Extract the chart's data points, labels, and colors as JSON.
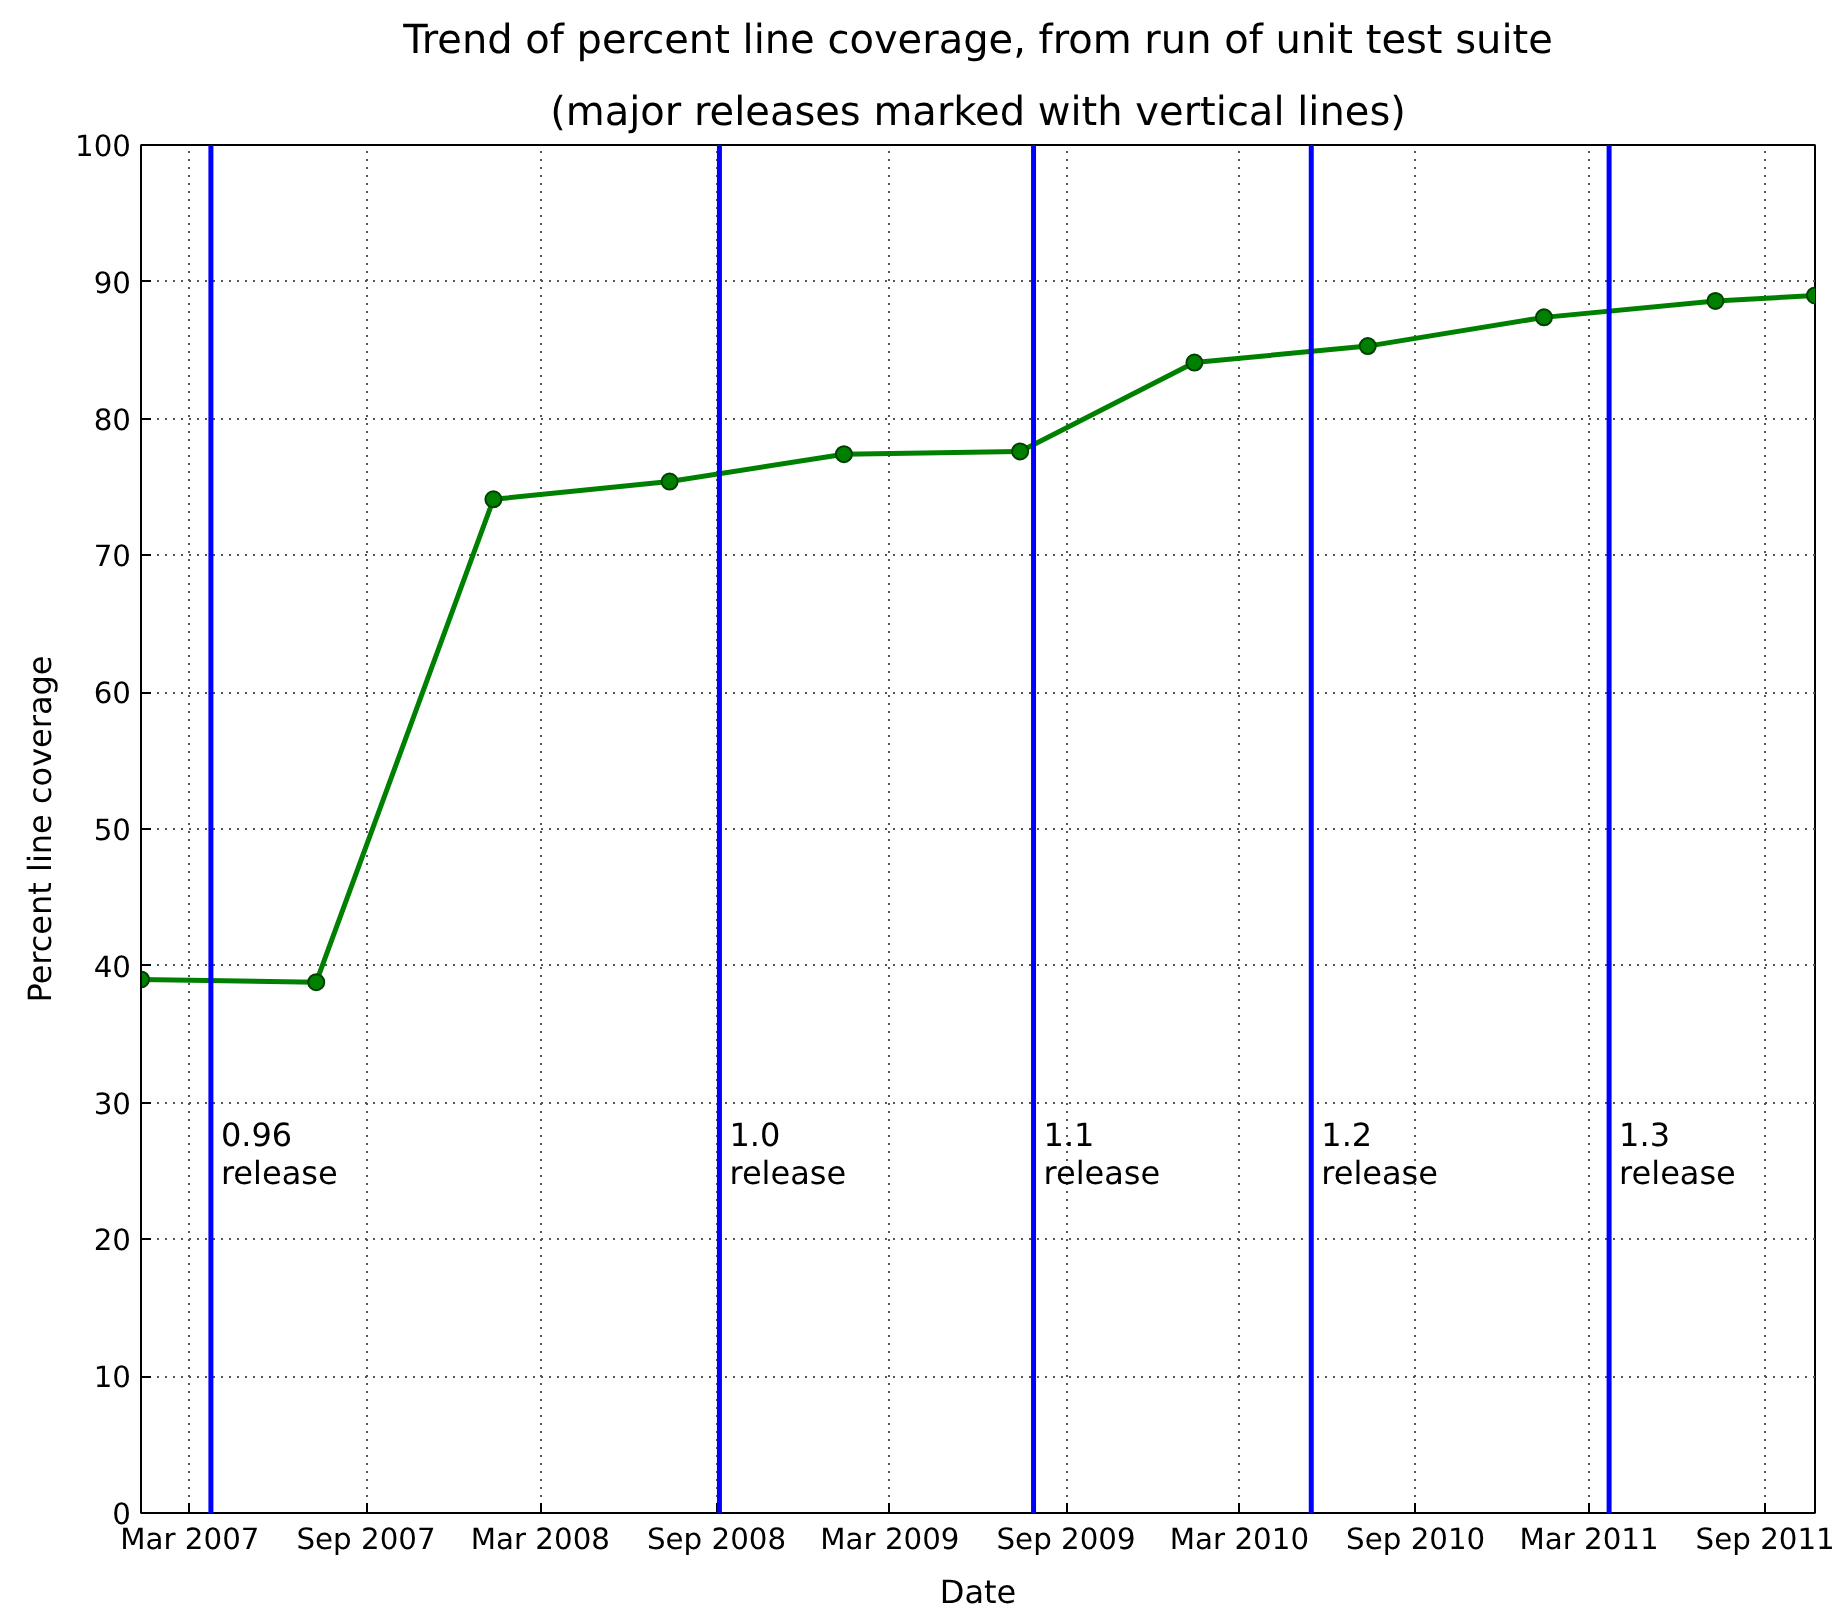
{
  "chart_data": {
    "type": "line",
    "title": "Trend of percent line coverage, from run of unit test suite",
    "subtitle": "(major releases marked with vertical lines)",
    "xlabel": "Date",
    "ylabel": "Percent line coverage",
    "x": [
      "2007-01-09",
      "2007-07-11",
      "2008-01-12",
      "2008-07-14",
      "2009-01-12",
      "2009-07-15",
      "2010-01-13",
      "2010-07-13",
      "2011-01-13",
      "2011-07-11",
      "2011-10-23"
    ],
    "series": [
      {
        "color": "#008000",
        "values": [
          39.0,
          38.8,
          74.1,
          75.4,
          77.4,
          77.6,
          84.1,
          85.3,
          87.4,
          88.6,
          89.0
        ]
      }
    ],
    "xlim": [
      "2007-01-09",
      "2011-10-23"
    ],
    "xticks": [
      {
        "value": "2007-03-01",
        "label": "Mar 2007"
      },
      {
        "value": "2007-09-01",
        "label": "Sep 2007"
      },
      {
        "value": "2008-03-01",
        "label": "Mar 2008"
      },
      {
        "value": "2008-09-01",
        "label": "Sep 2008"
      },
      {
        "value": "2009-03-01",
        "label": "Mar 2009"
      },
      {
        "value": "2009-09-01",
        "label": "Sep 2009"
      },
      {
        "value": "2010-03-01",
        "label": "Mar 2010"
      },
      {
        "value": "2010-09-01",
        "label": "Sep 2010"
      },
      {
        "value": "2011-03-01",
        "label": "Mar 2011"
      },
      {
        "value": "2011-09-01",
        "label": "Sep 2011"
      }
    ],
    "ylim": [
      0,
      100
    ],
    "yticks": [
      0,
      10,
      20,
      30,
      40,
      50,
      60,
      70,
      80,
      90,
      100
    ],
    "ref_lines": [
      {
        "axis": "x",
        "value": "2007-03-23",
        "label": "0.96\nrelease",
        "color": "#0000ff"
      },
      {
        "axis": "x",
        "value": "2008-09-04",
        "label": "1.0\nrelease",
        "color": "#0000ff"
      },
      {
        "axis": "x",
        "value": "2009-07-29",
        "label": "1.1\nrelease",
        "color": "#0000ff"
      },
      {
        "axis": "x",
        "value": "2010-05-15",
        "label": "1.2\nrelease",
        "color": "#0000ff"
      },
      {
        "axis": "x",
        "value": "2011-03-22",
        "label": "1.3\nrelease",
        "color": "#0000ff"
      }
    ],
    "grid": true,
    "marker": "circle",
    "line_style": "solid"
  }
}
